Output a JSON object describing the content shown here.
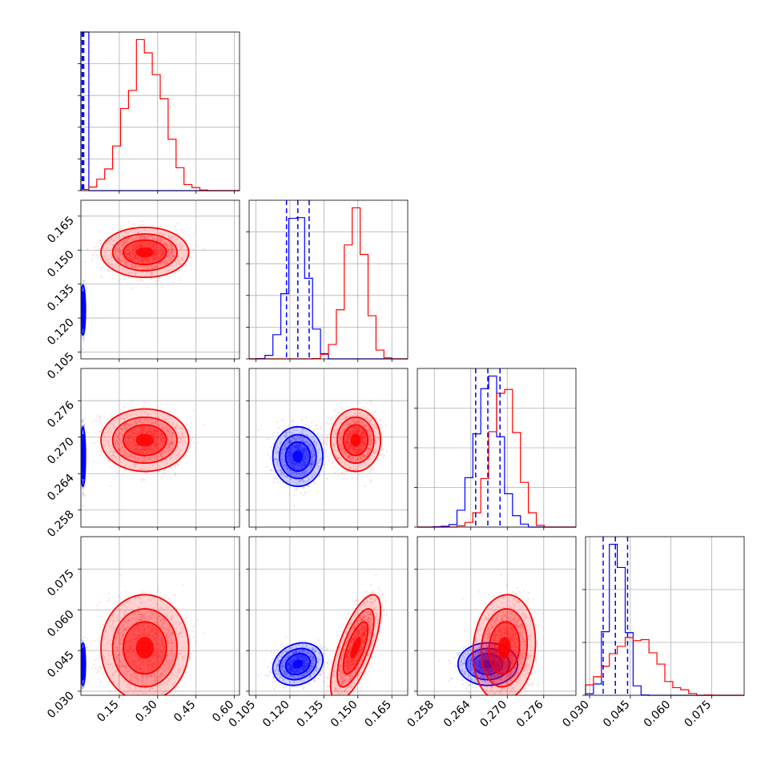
{
  "chart_data": {
    "type": "corner",
    "parameters": [
      {
        "ticks": [
          0.15,
          0.3,
          0.45,
          0.6
        ],
        "tick_labels": [
          "0.15",
          "0.30",
          "0.45",
          "0.60"
        ],
        "range": [
          0.0,
          0.62
        ]
      },
      {
        "ticks": [
          0.105,
          0.12,
          0.135,
          0.15,
          0.165
        ],
        "tick_labels": [
          "0.105",
          "0.120",
          "0.135",
          "0.150",
          "0.165"
        ],
        "range": [
          0.102,
          0.172
        ]
      },
      {
        "ticks": [
          0.258,
          0.264,
          0.27,
          0.276
        ],
        "tick_labels": [
          "0.258",
          "0.264",
          "0.270",
          "0.276"
        ],
        "range": [
          0.2552,
          0.2813
        ]
      },
      {
        "ticks": [
          0.03,
          0.045,
          0.06,
          0.075
        ],
        "tick_labels": [
          "0.030",
          "0.045",
          "0.060",
          "0.075"
        ],
        "range": [
          0.0285,
          0.087
        ]
      }
    ],
    "series": [
      {
        "color": "#0000ff",
        "mean": [
          0.008,
          0.1235,
          0.2668,
          0.04
        ],
        "std": [
          0.004,
          0.0045,
          0.002,
          0.0032
        ],
        "corr": [
          [
            1,
            0,
            0,
            0
          ],
          [
            0,
            1,
            0,
            0.2
          ],
          [
            0,
            0,
            1,
            0
          ],
          [
            0,
            0.2,
            0,
            1
          ]
        ],
        "quantiles": [
          [
            0.005,
            0.008,
            0.011
          ],
          [
            0.1185,
            0.1235,
            0.1285
          ],
          [
            0.2648,
            0.2668,
            0.2688
          ],
          [
            0.035,
            0.0395,
            0.044
          ]
        ]
      },
      {
        "color": "#ff0000",
        "mean": [
          0.25,
          0.149,
          0.2695,
          0.046
        ],
        "std": [
          0.07,
          0.0045,
          0.0021,
          0.008
        ],
        "corr": [
          [
            1,
            0,
            0,
            0
          ],
          [
            0,
            1,
            0,
            0.7
          ],
          [
            0,
            0,
            1,
            0.1
          ],
          [
            0,
            0.7,
            0.1,
            1
          ]
        ],
        "quantiles": null
      }
    ],
    "histogram_tick_counts": [
      5,
      5,
      4,
      3
    ],
    "grid": true,
    "layout": "lower-triangle 4x4"
  }
}
